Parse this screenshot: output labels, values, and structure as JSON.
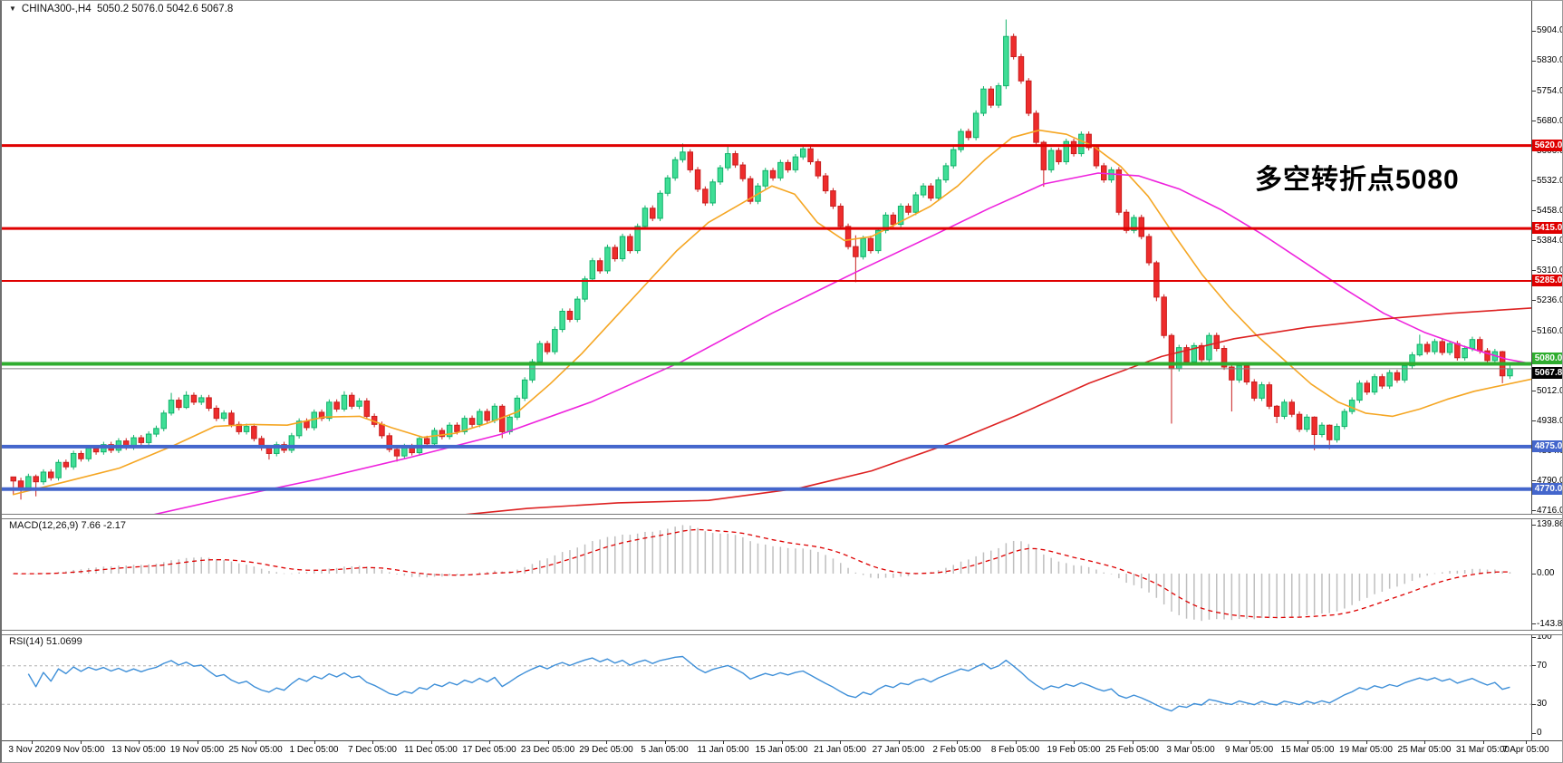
{
  "window_title_row": {
    "dropdown_icon": "▼",
    "symbol": "CHINA300-,H4",
    "ohlc_text": "5050.2 5076.0 5042.6 5067.8"
  },
  "annotation": {
    "text": "多空转折点5080",
    "color": "#E32222"
  },
  "colors": {
    "bull_fill": "#3FDE96",
    "bull_stroke": "#12B26B",
    "bear_fill": "#EE2C2C",
    "bear_stroke": "#C81E1E",
    "level_red": "#DF0000",
    "level_green": "#2FAD2F",
    "level_blue": "#4466CC",
    "current_price_line": "#808080",
    "current_price_badge_bg": "#000000",
    "ma_fast": "#F5A623",
    "ma_mid": "#EE22DD",
    "ma_slow": "#DD2222",
    "macd_histogram": "#BFBFBF",
    "macd_signal": "#DD0000",
    "rsi_line": "#3E8FD8",
    "rsi_guide": "#ADADAD",
    "axis_text": "#000000"
  },
  "chart_data": [
    {
      "type": "candlestick",
      "symbol": "CHINA300-,H4",
      "current_bar": {
        "open": 5050.2,
        "high": 5076.0,
        "low": 5042.6,
        "close": 5067.8
      },
      "y_ticks": [
        5904.0,
        5830.0,
        5754.0,
        5680.0,
        5606.0,
        5532.0,
        5458.0,
        5384.0,
        5310.0,
        5236.0,
        5160.0,
        5086.0,
        5012.0,
        4938.0,
        4864.0,
        4790.0,
        4716.0
      ],
      "first_open": 4800,
      "default_wick": 7,
      "closes": [
        4790,
        4772,
        4801,
        4788,
        4812,
        4798,
        4836,
        4825,
        4858,
        4845,
        4871,
        4862,
        4880,
        4866,
        4889,
        4874,
        4897,
        4885,
        4906,
        4920,
        4958,
        4990,
        4972,
        5002,
        4985,
        4996,
        4970,
        4945,
        4958,
        4930,
        4912,
        4925,
        4895,
        4872,
        4858,
        4880,
        4866,
        4902,
        4938,
        4922,
        4960,
        4945,
        4985,
        4968,
        5002,
        4975,
        4988,
        4950,
        4930,
        4902,
        4868,
        4852,
        4875,
        4860,
        4895,
        4882,
        4915,
        4900,
        4928,
        4912,
        4945,
        4930,
        4962,
        4940,
        4975,
        4912,
        4948,
        4995,
        5040,
        5085,
        5130,
        5110,
        5165,
        5210,
        5190,
        5240,
        5290,
        5335,
        5310,
        5368,
        5340,
        5395,
        5360,
        5420,
        5465,
        5440,
        5502,
        5540,
        5585,
        5604,
        5560,
        5512,
        5478,
        5530,
        5565,
        5600,
        5572,
        5538,
        5482,
        5520,
        5558,
        5540,
        5578,
        5560,
        5592,
        5612,
        5580,
        5545,
        5508,
        5470,
        5420,
        5370,
        5345,
        5390,
        5360,
        5410,
        5448,
        5425,
        5470,
        5455,
        5498,
        5520,
        5490,
        5535,
        5570,
        5610,
        5655,
        5640,
        5700,
        5760,
        5720,
        5768,
        5890,
        5840,
        5780,
        5700,
        5628,
        5560,
        5608,
        5580,
        5630,
        5600,
        5648,
        5615,
        5570,
        5535,
        5560,
        5455,
        5410,
        5442,
        5395,
        5330,
        5245,
        5150,
        5068,
        5120,
        5085,
        5125,
        5090,
        5150,
        5118,
        5072,
        5040,
        5075,
        5035,
        4995,
        5028,
        4975,
        4950,
        4985,
        4955,
        4918,
        4948,
        4905,
        4928,
        4892,
        4925,
        4962,
        4990,
        5032,
        5010,
        5048,
        5025,
        5058,
        5040,
        5075,
        5102,
        5128,
        5110,
        5135,
        5108,
        5130,
        5095,
        5118,
        5140,
        5112,
        5088,
        5110,
        5050.2,
        5067.8
      ],
      "wick_overrides": {
        "0": [
          4800,
          4756
        ],
        "1": [
          4798,
          4744
        ],
        "3": [
          4806,
          4752
        ],
        "21": [
          5008,
          4952
        ],
        "23": [
          5012,
          4968
        ],
        "34": [
          4878,
          4843
        ],
        "44": [
          5012,
          4962
        ],
        "51": [
          4874,
          4838
        ],
        "65": [
          4980,
          4896
        ],
        "89": [
          5625,
          5578
        ],
        "95": [
          5618,
          5558
        ],
        "105": [
          5622,
          5585
        ],
        "112": [
          5398,
          5282
        ],
        "132": [
          5932,
          5760
        ],
        "137": [
          5632,
          5518
        ],
        "152": [
          5335,
          5235
        ],
        "154": [
          5155,
          4932
        ],
        "162": [
          5078,
          4962
        ],
        "168": [
          4978,
          4933
        ],
        "173": [
          4950,
          4866
        ],
        "175": [
          4930,
          4869
        ],
        "187": [
          5152,
          5098
        ],
        "198": [
          5112,
          5032
        ],
        "199": [
          5076.0,
          5042.6
        ]
      },
      "levels": [
        {
          "price": 5620.0,
          "label": "5620.0",
          "color": "red",
          "thickness": 3
        },
        {
          "price": 5415.0,
          "label": "5415.0",
          "color": "red",
          "thickness": 3
        },
        {
          "price": 5285.0,
          "label": "5285.0",
          "color": "red",
          "thickness": 2
        },
        {
          "price": 5080.0,
          "label": "5080.0",
          "color": "green",
          "thickness": 4
        },
        {
          "price": 4875.0,
          "label": "4875.0",
          "color": "blue",
          "thickness": 4
        },
        {
          "price": 4770.0,
          "label": "4770.0",
          "color": "blue",
          "thickness": 4
        }
      ],
      "current_price": {
        "value": 5067.8,
        "label": "5067.8"
      },
      "moving_averages": [
        {
          "name": "fast-ma",
          "color_key": "ma_fast",
          "points": [
            [
              12,
              4756
            ],
            [
              70,
              4788
            ],
            [
              130,
              4822
            ],
            [
              190,
              4878
            ],
            [
              235,
              4925
            ],
            [
              275,
              4930
            ],
            [
              315,
              4928
            ],
            [
              355,
              4948
            ],
            [
              395,
              4950
            ],
            [
              430,
              4922
            ],
            [
              465,
              4898
            ],
            [
              500,
              4908
            ],
            [
              535,
              4932
            ],
            [
              570,
              4962
            ],
            [
              605,
              5030
            ],
            [
              640,
              5105
            ],
            [
              675,
              5190
            ],
            [
              710,
              5275
            ],
            [
              745,
              5360
            ],
            [
              780,
              5430
            ],
            [
              815,
              5475
            ],
            [
              850,
              5520
            ],
            [
              875,
              5500
            ],
            [
              900,
              5430
            ],
            [
              930,
              5385
            ],
            [
              960,
              5395
            ],
            [
              995,
              5435
            ],
            [
              1025,
              5470
            ],
            [
              1055,
              5520
            ],
            [
              1085,
              5585
            ],
            [
              1115,
              5640
            ],
            [
              1145,
              5658
            ],
            [
              1175,
              5648
            ],
            [
              1205,
              5618
            ],
            [
              1235,
              5568
            ],
            [
              1265,
              5495
            ],
            [
              1295,
              5395
            ],
            [
              1325,
              5300
            ],
            [
              1355,
              5220
            ],
            [
              1385,
              5150
            ],
            [
              1415,
              5090
            ],
            [
              1445,
              5030
            ],
            [
              1475,
              4985
            ],
            [
              1505,
              4958
            ],
            [
              1535,
              4950
            ],
            [
              1565,
              4968
            ],
            [
              1595,
              4992
            ],
            [
              1625,
              5012
            ],
            [
              1688,
              5042
            ]
          ]
        },
        {
          "name": "mid-ma",
          "color_key": "ma_mid",
          "points": [
            [
              55,
              4648
            ],
            [
              150,
              4698
            ],
            [
              250,
              4748
            ],
            [
              350,
              4795
            ],
            [
              450,
              4848
            ],
            [
              550,
              4905
            ],
            [
              650,
              4985
            ],
            [
              750,
              5085
            ],
            [
              850,
              5205
            ],
            [
              950,
              5315
            ],
            [
              1030,
              5400
            ],
            [
              1090,
              5465
            ],
            [
              1150,
              5525
            ],
            [
              1210,
              5552
            ],
            [
              1255,
              5545
            ],
            [
              1300,
              5512
            ],
            [
              1345,
              5462
            ],
            [
              1390,
              5402
            ],
            [
              1435,
              5335
            ],
            [
              1480,
              5268
            ],
            [
              1525,
              5205
            ],
            [
              1570,
              5158
            ],
            [
              1615,
              5122
            ],
            [
              1660,
              5092
            ],
            [
              1688,
              5080
            ]
          ]
        },
        {
          "name": "slow-ma",
          "color_key": "ma_slow",
          "points": [
            [
              40,
              4592
            ],
            [
              200,
              4630
            ],
            [
              360,
              4668
            ],
            [
              480,
              4700
            ],
            [
              580,
              4722
            ],
            [
              680,
              4736
            ],
            [
              780,
              4742
            ],
            [
              880,
              4772
            ],
            [
              960,
              4815
            ],
            [
              1040,
              4878
            ],
            [
              1120,
              4952
            ],
            [
              1200,
              5032
            ],
            [
              1280,
              5098
            ],
            [
              1360,
              5142
            ],
            [
              1440,
              5170
            ],
            [
              1520,
              5190
            ],
            [
              1600,
              5205
            ],
            [
              1688,
              5218
            ]
          ]
        }
      ]
    },
    {
      "type": "macd",
      "label": "MACD(12,26,9) 7.66 -2.17",
      "fast": 12,
      "slow": 26,
      "signal": 9,
      "macd_value": 7.66,
      "signal_value": -2.17,
      "y_labels": [
        "139.86",
        "0.00",
        "-143.82"
      ],
      "y_values": [
        139.86,
        0,
        -143.82
      ]
    },
    {
      "type": "rsi",
      "label": "RSI(14) 51.0699",
      "period": 14,
      "value": 51.0699,
      "y_labels": [
        "100",
        "70",
        "30",
        "0"
      ],
      "y_values": [
        100,
        70,
        30,
        0
      ],
      "guides": [
        70,
        30
      ]
    }
  ],
  "time_axis": {
    "labels": [
      "3 Nov 2020",
      "9 Nov 05:00",
      "13 Nov 05:00",
      "19 Nov 05:00",
      "25 Nov 05:00",
      "1 Dec 05:00",
      "7 Dec 05:00",
      "11 Dec 05:00",
      "17 Dec 05:00",
      "23 Dec 05:00",
      "29 Dec 05:00",
      "5 Jan 05:00",
      "11 Jan 05:00",
      "15 Jan 05:00",
      "21 Jan 05:00",
      "27 Jan 05:00",
      "2 Feb 05:00",
      "8 Feb 05:00",
      "19 Feb 05:00",
      "25 Feb 05:00",
      "3 Mar 05:00",
      "9 Mar 05:00",
      "15 Mar 05:00",
      "19 Mar 05:00",
      "25 Mar 05:00",
      "31 Mar 05:00",
      "7 Apr 05:00"
    ]
  }
}
